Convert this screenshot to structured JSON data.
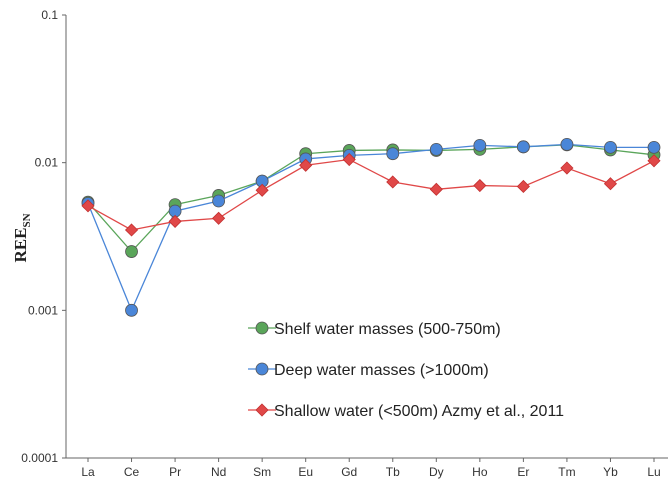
{
  "chart_data": {
    "type": "line",
    "title": "",
    "xlabel": "",
    "ylabel": "REE",
    "ylabel_sub": "SN",
    "yscale": "log",
    "ylim": [
      0.0001,
      0.1
    ],
    "ytick_labels": [
      "0.0001",
      "0.001",
      "0.01",
      "0.1"
    ],
    "ytick_values": [
      0.0001,
      0.001,
      0.01,
      0.1
    ],
    "categories": [
      "La",
      "Ce",
      "Pr",
      "Nd",
      "Sm",
      "Eu",
      "Gd",
      "Tb",
      "Dy",
      "Ho",
      "Er",
      "Tm",
      "Yb",
      "Lu"
    ],
    "grid": false,
    "legend_position": "bottom-right",
    "series": [
      {
        "name": "Shelf water masses (500-750m)",
        "color": "#5aa55a",
        "marker": "circle",
        "values": [
          0.0054,
          0.0025,
          0.0052,
          0.006,
          0.0075,
          0.0115,
          0.0121,
          0.0122,
          0.0121,
          0.0123,
          0.0128,
          0.0132,
          0.0122,
          0.0113
        ]
      },
      {
        "name": "Deep water masses (>1000m)",
        "color": "#4a86d8",
        "marker": "circle",
        "values": [
          0.0053,
          0.001,
          0.0047,
          0.0055,
          0.0075,
          0.0106,
          0.0112,
          0.0115,
          0.0123,
          0.0131,
          0.0128,
          0.0133,
          0.0127,
          0.0127
        ]
      },
      {
        "name": "Shallow water (<500m) Azmy et al., 2011",
        "color": "#e04848",
        "marker": "diamond",
        "values": [
          0.0051,
          0.0035,
          0.004,
          0.0042,
          0.0065,
          0.0096,
          0.0105,
          0.0074,
          0.0066,
          0.007,
          0.0069,
          0.0092,
          0.0072,
          0.0103
        ]
      }
    ]
  }
}
